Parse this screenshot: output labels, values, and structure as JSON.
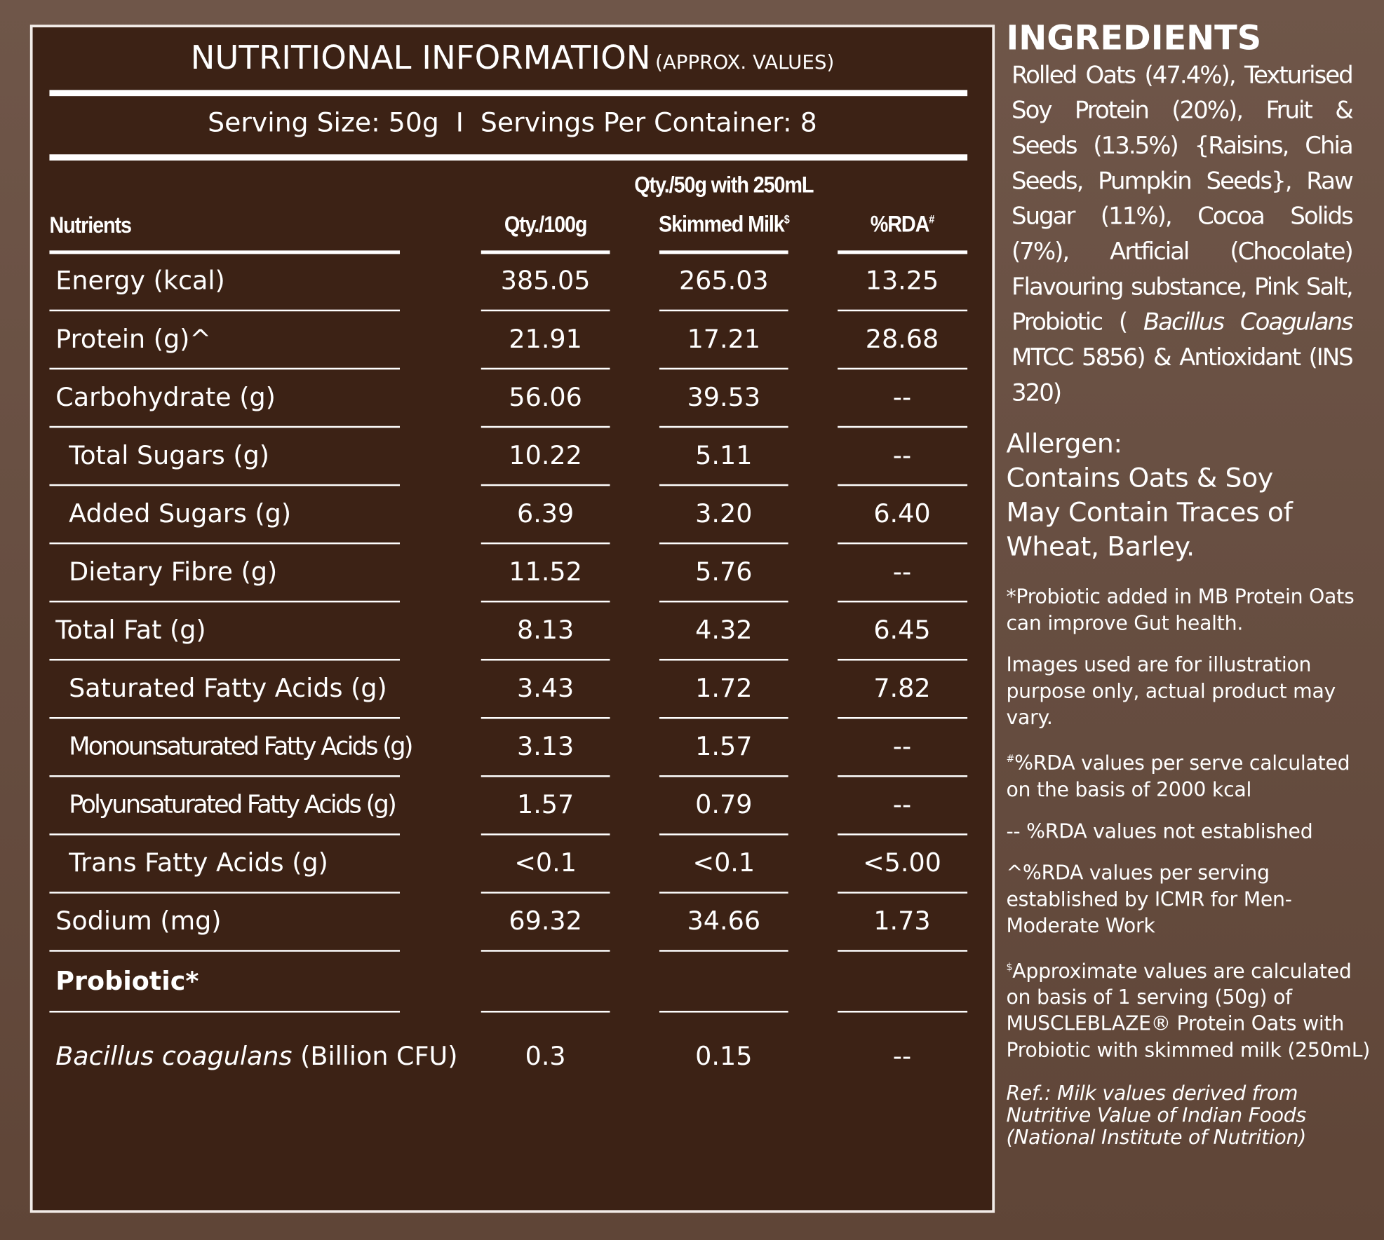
{
  "header": {
    "title": "NUTRITIONAL INFORMATION",
    "subtitle": "(APPROX. VALUES)",
    "serving": "Serving Size: 50g  I  Servings Per Container: 8"
  },
  "table": {
    "columns": [
      {
        "text": "Nutrients"
      },
      {
        "text": "Qty./100g"
      },
      {
        "text": "Qty./50g with 250mL Skimmed Milk",
        "sup": "$"
      },
      {
        "text": "%RDA",
        "sup": "#"
      }
    ],
    "rows": [
      [
        "Energy (kcal)",
        "385.05",
        "265.03",
        "13.25"
      ],
      [
        "Protein (g)^",
        "21.91",
        "17.21",
        "28.68"
      ],
      [
        "Carbohydrate (g)",
        "56.06",
        "39.53",
        "--"
      ],
      [
        "Total Sugars (g)",
        "10.22",
        "5.11",
        "--"
      ],
      [
        "Added Sugars (g)",
        "6.39",
        "3.20",
        "6.40"
      ],
      [
        "Dietary Fibre (g)",
        "11.52",
        "5.76",
        "--"
      ],
      [
        "Total Fat (g)",
        "8.13",
        "4.32",
        "6.45"
      ],
      [
        "Saturated Fatty Acids (g)",
        "3.43",
        "1.72",
        "7.82"
      ],
      [
        "Monounsaturated Fatty Acids (g)",
        "3.13",
        "1.57",
        "--"
      ],
      [
        "Polyunsaturated Fatty Acids (g)",
        "1.57",
        "0.79",
        "--"
      ],
      [
        "Trans Fatty Acids (g)",
        "<0.1",
        "<0.1",
        "<5.00"
      ],
      [
        "Sodium (mg)",
        "69.32",
        "34.66",
        "1.73"
      ]
    ],
    "probiotic": {
      "heading": "Probiotic*",
      "species": "Bacillus coagulans",
      "unit": "(Billion CFU)",
      "values": [
        "0.3",
        "0.15",
        "--"
      ]
    }
  },
  "ingredients": {
    "title": "INGREDIENTS",
    "text_start": "Rolled Oats (47.4%), Texturised Soy Protein (20%), Fruit & Seeds (13.5%) {Raisins, Chia Seeds, Pumpkin Seeds}, Raw Sugar (11%), Cocoa Solids (7%), Artficial (Chocolate) Flavouring substance, Pink Salt, Probiotic (",
    "italic": "Bacillus Coagulans",
    "text_end": "MTCC 5856) & Antioxidant (INS 320)"
  },
  "allergen": {
    "title": "Allergen:",
    "lines": [
      "Contains Oats & Soy",
      "May Contain Traces of Wheat, Barley."
    ]
  },
  "notes": [
    "*Probiotic added in MB Protein Oats can improve Gut health.",
    "Images used are for illustration purpose only, actual product may vary.",
    {
      "sup": "#",
      "text": "%RDA values per serve calculated on the basis of 2000 kcal"
    },
    "-- %RDA values not established",
    "^%RDA values per serving established by ICMR for Men-Moderate Work",
    {
      "sup": "$",
      "text": "Approximate values are calculated on basis of 1 serving (50g) of MUSCLEBLAZE® Protein Oats with Probiotic with skimmed milk (250mL)"
    }
  ],
  "reference": "Ref.: Milk values derived from Nutritive Value of Indian Foods (National Institute of Nutrition)"
}
